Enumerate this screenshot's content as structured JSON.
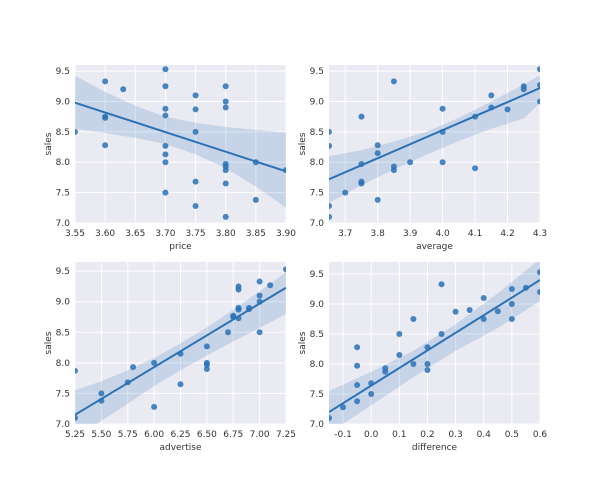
{
  "colors": {
    "panel_bg": "#eaeaf2",
    "grid": "#ffffff",
    "series": "#2a72b5",
    "ci_band": "#2a72b5"
  },
  "chart_data": [
    {
      "type": "scatter",
      "xlabel": "price",
      "ylabel": "sales",
      "xlim": [
        3.55,
        3.9
      ],
      "ylim": [
        7.0,
        9.6
      ],
      "xticks": [
        "3.55",
        "3.60",
        "3.65",
        "3.70",
        "3.75",
        "3.80",
        "3.85",
        "3.90"
      ],
      "yticks": [
        "7.0",
        "7.5",
        "8.0",
        "8.5",
        "9.0",
        "9.5"
      ],
      "grid": true,
      "points": [
        [
          3.55,
          8.5
        ],
        [
          3.6,
          9.33
        ],
        [
          3.6,
          8.75
        ],
        [
          3.6,
          8.73
        ],
        [
          3.6,
          8.28
        ],
        [
          3.63,
          9.2
        ],
        [
          3.7,
          9.53
        ],
        [
          3.7,
          9.25
        ],
        [
          3.7,
          8.88
        ],
        [
          3.7,
          8.77
        ],
        [
          3.7,
          8.27
        ],
        [
          3.7,
          8.13
        ],
        [
          3.7,
          8.0
        ],
        [
          3.7,
          7.5
        ],
        [
          3.75,
          9.1
        ],
        [
          3.75,
          8.87
        ],
        [
          3.75,
          8.5
        ],
        [
          3.75,
          7.68
        ],
        [
          3.75,
          7.28
        ],
        [
          3.8,
          9.25
        ],
        [
          3.8,
          9.0
        ],
        [
          3.8,
          8.9
        ],
        [
          3.8,
          7.97
        ],
        [
          3.8,
          7.93
        ],
        [
          3.8,
          7.87
        ],
        [
          3.8,
          7.65
        ],
        [
          3.8,
          7.1
        ],
        [
          3.85,
          8.0
        ],
        [
          3.85,
          7.38
        ],
        [
          3.9,
          7.87
        ]
      ],
      "fit": {
        "x": [
          3.55,
          3.9
        ],
        "y": [
          8.98,
          7.85
        ]
      },
      "ci": {
        "x": [
          3.55,
          3.6,
          3.65,
          3.7,
          3.75,
          3.8,
          3.85,
          3.9
        ],
        "upper": [
          9.42,
          9.16,
          8.93,
          8.75,
          8.65,
          8.58,
          8.53,
          8.49
        ],
        "lower": [
          8.55,
          8.48,
          8.4,
          8.3,
          8.13,
          7.9,
          7.6,
          7.25
        ]
      }
    },
    {
      "type": "scatter",
      "xlabel": "average",
      "ylabel": "sales",
      "xlim": [
        3.65,
        4.3
      ],
      "ylim": [
        7.0,
        9.6
      ],
      "xticks": [
        "3.7",
        "3.8",
        "3.9",
        "4.0",
        "4.1",
        "4.2",
        "4.3"
      ],
      "yticks": [
        "7.0",
        "7.5",
        "8.0",
        "8.5",
        "9.0",
        "9.5"
      ],
      "grid": true,
      "points": [
        [
          3.65,
          8.5
        ],
        [
          3.65,
          8.27
        ],
        [
          3.65,
          7.28
        ],
        [
          3.65,
          7.1
        ],
        [
          3.7,
          7.5
        ],
        [
          3.75,
          8.75
        ],
        [
          3.75,
          7.97
        ],
        [
          3.75,
          7.68
        ],
        [
          3.75,
          7.65
        ],
        [
          3.8,
          8.28
        ],
        [
          3.8,
          8.15
        ],
        [
          3.8,
          7.38
        ],
        [
          3.85,
          9.33
        ],
        [
          3.85,
          7.93
        ],
        [
          3.85,
          7.87
        ],
        [
          3.9,
          8.0
        ],
        [
          4.0,
          8.88
        ],
        [
          4.0,
          8.5
        ],
        [
          4.0,
          8.0
        ],
        [
          4.1,
          8.75
        ],
        [
          4.1,
          7.9
        ],
        [
          4.15,
          9.1
        ],
        [
          4.15,
          8.9
        ],
        [
          4.2,
          8.87
        ],
        [
          4.25,
          9.25
        ],
        [
          4.25,
          9.2
        ],
        [
          4.3,
          9.53
        ],
        [
          4.3,
          9.27
        ],
        [
          4.3,
          9.0
        ]
      ],
      "fit": {
        "x": [
          3.65,
          4.3
        ],
        "y": [
          7.72,
          9.22
        ]
      },
      "ci": {
        "x": [
          3.65,
          3.75,
          3.85,
          3.95,
          4.05,
          4.15,
          4.25,
          4.3
        ],
        "upper": [
          8.1,
          8.2,
          8.34,
          8.5,
          8.73,
          9.0,
          9.28,
          9.43
        ],
        "lower": [
          7.33,
          7.62,
          7.88,
          8.12,
          8.35,
          8.55,
          8.72,
          8.98
        ]
      }
    },
    {
      "type": "scatter",
      "xlabel": "advertise",
      "ylabel": "sales",
      "xlim": [
        5.25,
        7.25
      ],
      "ylim": [
        7.0,
        9.65
      ],
      "xticks": [
        "5.25",
        "5.50",
        "5.75",
        "6.00",
        "6.25",
        "6.50",
        "6.75",
        "7.00",
        "7.25"
      ],
      "yticks": [
        "7.0",
        "7.5",
        "8.0",
        "8.5",
        "9.0",
        "9.5"
      ],
      "grid": true,
      "points": [
        [
          5.25,
          7.87
        ],
        [
          5.25,
          7.1
        ],
        [
          5.5,
          7.5
        ],
        [
          5.5,
          7.38
        ],
        [
          5.75,
          7.68
        ],
        [
          5.8,
          7.93
        ],
        [
          6.0,
          8.0
        ],
        [
          6.0,
          7.28
        ],
        [
          6.25,
          8.15
        ],
        [
          6.25,
          7.65
        ],
        [
          6.5,
          8.27
        ],
        [
          6.5,
          8.0
        ],
        [
          6.5,
          7.97
        ],
        [
          6.5,
          7.9
        ],
        [
          6.7,
          8.5
        ],
        [
          6.75,
          8.75
        ],
        [
          6.75,
          8.77
        ],
        [
          6.8,
          9.25
        ],
        [
          6.8,
          9.2
        ],
        [
          6.8,
          8.9
        ],
        [
          6.8,
          8.87
        ],
        [
          6.8,
          8.73
        ],
        [
          6.9,
          8.88
        ],
        [
          6.9,
          8.9
        ],
        [
          7.0,
          9.33
        ],
        [
          7.0,
          9.1
        ],
        [
          7.0,
          9.0
        ],
        [
          7.0,
          8.5
        ],
        [
          7.1,
          9.27
        ],
        [
          7.25,
          9.53
        ]
      ],
      "fit": {
        "x": [
          5.25,
          7.25
        ],
        "y": [
          7.15,
          9.23
        ]
      },
      "ci": {
        "x": [
          5.25,
          5.5,
          5.75,
          6.0,
          6.25,
          6.5,
          6.75,
          7.0,
          7.25
        ],
        "upper": [
          7.55,
          7.7,
          7.88,
          8.08,
          8.32,
          8.58,
          8.87,
          9.17,
          9.48
        ],
        "lower": [
          6.75,
          7.05,
          7.33,
          7.62,
          7.88,
          8.12,
          8.35,
          8.57,
          8.8
        ]
      }
    },
    {
      "type": "scatter",
      "xlabel": "difference",
      "ylabel": "sales",
      "xlim": [
        -0.15,
        0.6
      ],
      "ylim": [
        7.0,
        9.7
      ],
      "xticks": [
        "-0.1",
        "0.0",
        "0.1",
        "0.2",
        "0.3",
        "0.4",
        "0.5",
        "0.6"
      ],
      "yticks": [
        "7.0",
        "7.5",
        "8.0",
        "8.5",
        "9.0",
        "9.5"
      ],
      "grid": true,
      "points": [
        [
          -0.15,
          7.1
        ],
        [
          -0.1,
          7.28
        ],
        [
          -0.05,
          8.28
        ],
        [
          -0.05,
          7.97
        ],
        [
          -0.05,
          7.65
        ],
        [
          -0.05,
          7.38
        ],
        [
          0.0,
          7.68
        ],
        [
          0.0,
          7.5
        ],
        [
          0.05,
          7.93
        ],
        [
          0.05,
          7.87
        ],
        [
          0.1,
          8.5
        ],
        [
          0.1,
          8.15
        ],
        [
          0.15,
          8.75
        ],
        [
          0.15,
          8.0
        ],
        [
          0.2,
          8.28
        ],
        [
          0.2,
          8.0
        ],
        [
          0.2,
          7.9
        ],
        [
          0.25,
          9.33
        ],
        [
          0.25,
          8.5
        ],
        [
          0.3,
          8.87
        ],
        [
          0.35,
          8.9
        ],
        [
          0.4,
          9.1
        ],
        [
          0.4,
          8.75
        ],
        [
          0.45,
          8.88
        ],
        [
          0.5,
          9.25
        ],
        [
          0.5,
          9.0
        ],
        [
          0.5,
          8.75
        ],
        [
          0.55,
          9.27
        ],
        [
          0.6,
          9.53
        ],
        [
          0.6,
          9.2
        ]
      ],
      "fit": {
        "x": [
          -0.15,
          0.6
        ],
        "y": [
          7.2,
          9.4
        ]
      },
      "ci": {
        "x": [
          -0.15,
          0.0,
          0.15,
          0.3,
          0.45,
          0.6
        ],
        "upper": [
          7.55,
          7.87,
          8.22,
          8.66,
          9.18,
          9.75
        ],
        "lower": [
          6.85,
          7.31,
          7.78,
          8.22,
          8.6,
          9.05
        ]
      }
    }
  ]
}
